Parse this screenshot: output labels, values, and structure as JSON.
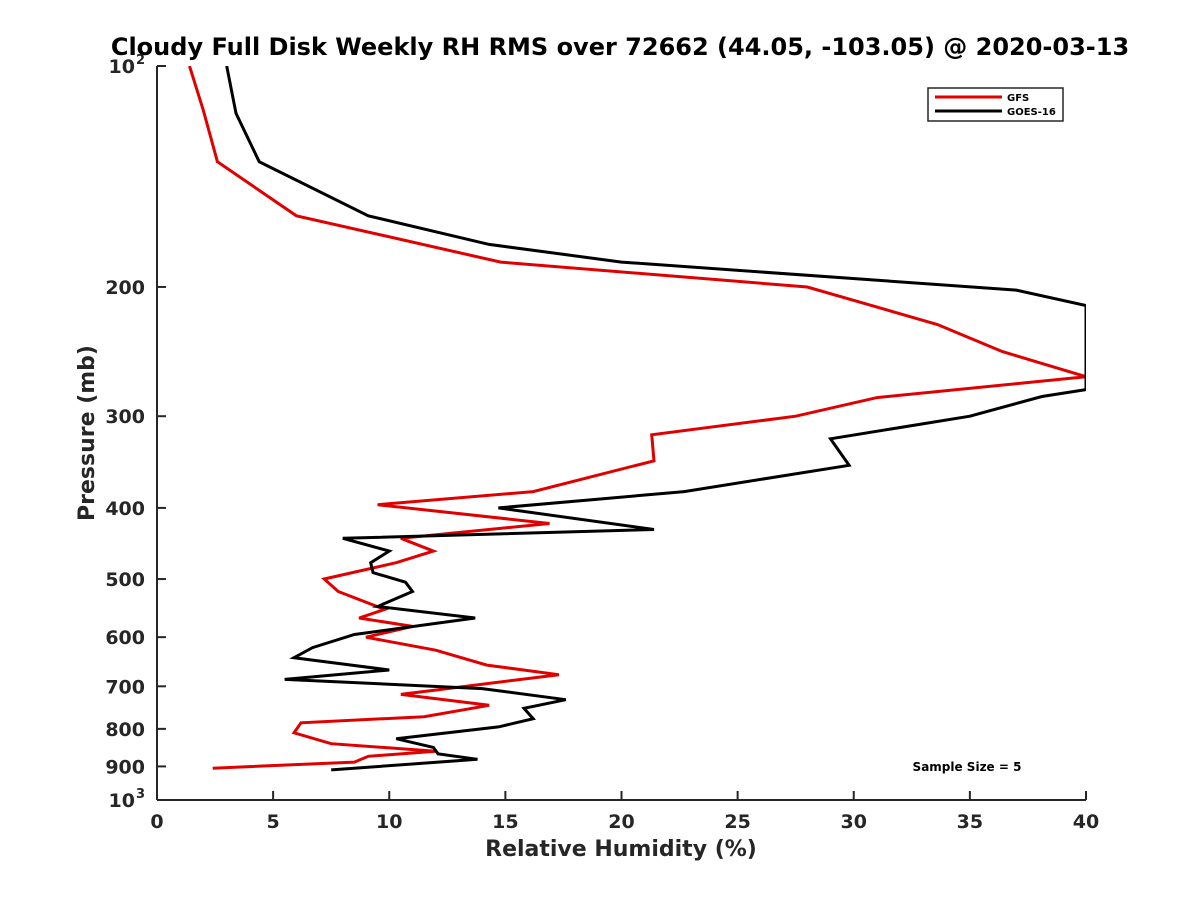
{
  "chart_data": {
    "type": "line",
    "title": "Cloudy Full Disk Weekly RH RMS over 72662 (44.05, -103.05) @ 2020-03-13",
    "xlabel": "Relative Humidity (%)",
    "ylabel": "Pressure (mb)",
    "xlim": [
      0,
      40
    ],
    "ylim": [
      100,
      1000
    ],
    "y_scale": "log",
    "y_reversed": true,
    "grid": false,
    "legend_position": "top-right",
    "annotation": "Sample Size = 5",
    "x_ticks": [
      "0",
      "5",
      "10",
      "15",
      "20",
      "25",
      "30",
      "35",
      "40"
    ],
    "x_tick_values": [
      0,
      5,
      10,
      15,
      20,
      25,
      30,
      35,
      40
    ],
    "y_ticks": [
      {
        "value": 100,
        "base": "10",
        "exp": "2"
      },
      {
        "value": 200,
        "base": "200",
        "exp": ""
      },
      {
        "value": 300,
        "base": "300",
        "exp": ""
      },
      {
        "value": 400,
        "base": "400",
        "exp": ""
      },
      {
        "value": 500,
        "base": "500",
        "exp": ""
      },
      {
        "value": 600,
        "base": "600",
        "exp": ""
      },
      {
        "value": 700,
        "base": "700",
        "exp": ""
      },
      {
        "value": 800,
        "base": "800",
        "exp": ""
      },
      {
        "value": 900,
        "base": "900",
        "exp": ""
      },
      {
        "value": 1000,
        "base": "10",
        "exp": "3"
      }
    ],
    "series": [
      {
        "name": "GFS",
        "color": "#e00000",
        "points": [
          [
            1.4,
            100
          ],
          [
            2.0,
            115
          ],
          [
            2.6,
            135
          ],
          [
            6.0,
            160
          ],
          [
            14.8,
            185
          ],
          [
            28.0,
            200
          ],
          [
            33.6,
            225
          ],
          [
            36.4,
            245
          ],
          [
            40.0,
            265
          ],
          [
            31.0,
            283
          ],
          [
            27.5,
            300
          ],
          [
            21.3,
            318
          ],
          [
            21.4,
            345
          ],
          [
            16.2,
            380
          ],
          [
            9.5,
            396
          ],
          [
            16.9,
            420
          ],
          [
            10.5,
            440
          ],
          [
            11.9,
            458
          ],
          [
            10.3,
            475
          ],
          [
            7.2,
            500
          ],
          [
            7.8,
            520
          ],
          [
            9.8,
            550
          ],
          [
            8.7,
            565
          ],
          [
            11.0,
            580
          ],
          [
            9.0,
            600
          ],
          [
            12.0,
            625
          ],
          [
            14.2,
            655
          ],
          [
            17.3,
            675
          ],
          [
            12.5,
            705
          ],
          [
            10.5,
            718
          ],
          [
            14.3,
            743
          ],
          [
            11.5,
            770
          ],
          [
            6.2,
            785
          ],
          [
            5.9,
            810
          ],
          [
            7.5,
            838
          ],
          [
            12.0,
            858
          ],
          [
            9.1,
            872
          ],
          [
            8.5,
            888
          ],
          [
            2.4,
            905
          ]
        ]
      },
      {
        "name": "GOES-16",
        "color": "#000000",
        "points": [
          [
            3.0,
            100
          ],
          [
            3.4,
            116
          ],
          [
            4.4,
            135
          ],
          [
            9.1,
            160
          ],
          [
            14.3,
            175
          ],
          [
            20.0,
            185
          ],
          [
            37.0,
            202
          ],
          [
            40.0,
            212
          ],
          [
            40.0,
            276
          ],
          [
            38.1,
            282
          ],
          [
            35.0,
            300
          ],
          [
            29.0,
            322
          ],
          [
            29.8,
            350
          ],
          [
            22.7,
            380
          ],
          [
            14.7,
            400
          ],
          [
            21.4,
            428
          ],
          [
            8.0,
            440
          ],
          [
            10.0,
            458
          ],
          [
            9.2,
            475
          ],
          [
            9.3,
            490
          ],
          [
            10.7,
            505
          ],
          [
            11.0,
            520
          ],
          [
            9.5,
            545
          ],
          [
            13.7,
            565
          ],
          [
            8.5,
            595
          ],
          [
            6.7,
            620
          ],
          [
            5.9,
            640
          ],
          [
            10.0,
            665
          ],
          [
            5.5,
            685
          ],
          [
            14.0,
            705
          ],
          [
            17.6,
            730
          ],
          [
            15.8,
            750
          ],
          [
            16.2,
            775
          ],
          [
            14.7,
            795
          ],
          [
            10.3,
            825
          ],
          [
            11.9,
            848
          ],
          [
            12.1,
            865
          ],
          [
            13.8,
            880
          ],
          [
            7.5,
            910
          ]
        ]
      }
    ]
  }
}
